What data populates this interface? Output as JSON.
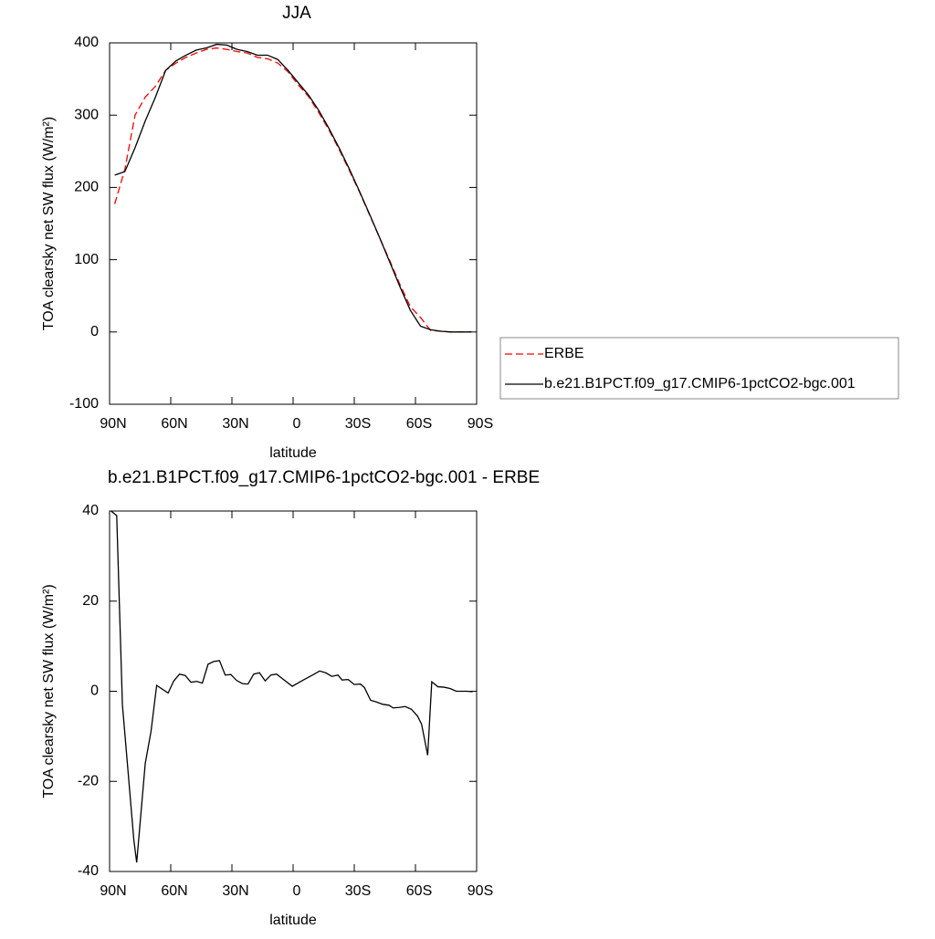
{
  "chart_data": [
    {
      "type": "line",
      "title": "JJA",
      "xlabel": "latitude",
      "ylabel": "TOA clearsky net SW flux (W/m²)",
      "x": [
        87.5,
        82.5,
        77.5,
        72.5,
        67.5,
        62.5,
        57.5,
        52.5,
        47.5,
        42.5,
        37.5,
        32.5,
        27.5,
        22.5,
        17.5,
        12.5,
        7.5,
        2.5,
        -2.5,
        -7.5,
        -12.5,
        -17.5,
        -22.5,
        -27.5,
        -32.5,
        -37.5,
        -42.5,
        -47.5,
        -52.5,
        -57.5,
        -62.5,
        -67.5,
        -72.5,
        -77.5,
        -82.5,
        -87.5
      ],
      "series": [
        {
          "name": "ERBE",
          "color": "#ff0000",
          "dash": "dashed",
          "values": [
            177,
            225,
            300,
            325,
            340,
            362,
            372,
            380,
            386,
            391,
            393,
            391,
            388,
            386,
            380,
            378,
            372,
            360,
            342,
            326,
            304,
            280,
            253,
            224,
            194,
            162,
            130,
            98,
            65,
            35,
            20,
            2,
            1,
            0,
            0,
            0
          ]
        },
        {
          "name": "b.e21.B1PCT.f09_g17.CMIP6-1pctCO2-bgc.001",
          "color": "#000000",
          "dash": "solid",
          "values": [
            217,
            222,
            255,
            292,
            325,
            362,
            375,
            383,
            390,
            393,
            398,
            397,
            391,
            388,
            383,
            383,
            377,
            362,
            345,
            328,
            307,
            282,
            255,
            226,
            195,
            163,
            130,
            96,
            62,
            30,
            8,
            3,
            1,
            0,
            0,
            0
          ]
        }
      ],
      "xlim": [
        90,
        -90
      ],
      "ylim": [
        -100,
        400
      ],
      "xticks": [
        {
          "value": 90,
          "label": "90N"
        },
        {
          "value": 60,
          "label": "60N"
        },
        {
          "value": 30,
          "label": "30N"
        },
        0,
        {
          "value": -30,
          "label": "30S"
        },
        {
          "value": -60,
          "label": "60S"
        },
        {
          "value": -90,
          "label": "90S"
        }
      ],
      "yticks": [
        -100,
        0,
        100,
        200,
        300,
        400
      ]
    },
    {
      "type": "line",
      "title": "b.e21.B1PCT.f09_g17.CMIP6-1pctCO2-bgc.001 - ERBE",
      "xlabel": "latitude",
      "ylabel": "TOA clearsky net SW flux (W/m²)",
      "x": [
        89.3,
        86.5,
        83.7,
        78.1,
        76.7,
        72.5,
        69.7,
        66.9,
        61.3,
        58.5,
        55.7,
        52.9,
        50.1,
        47.3,
        44.5,
        41.7,
        38.9,
        36.1,
        33.3,
        30.5,
        27.7,
        24.9,
        22.1,
        19.3,
        16.5,
        13.7,
        10.9,
        8.1,
        5.3,
        0.4,
        -5,
        -10,
        -13,
        -16,
        -19,
        -22,
        -24,
        -27,
        -30,
        -33,
        -35,
        -38,
        -41,
        -44,
        -47,
        -49,
        -52,
        -55,
        -58,
        -61,
        -63,
        -66,
        -68,
        -71,
        -74,
        -77,
        -80,
        -85,
        -88
      ],
      "series": [
        {
          "color": "#000000",
          "dash": "solid",
          "values": [
            40,
            39,
            -3,
            -33,
            -38,
            -16,
            -9,
            1.3,
            -0.4,
            2.3,
            3.8,
            3.5,
            2,
            2.2,
            1.8,
            6,
            6.6,
            6.8,
            3.6,
            3.7,
            2.4,
            1.7,
            1.6,
            3.8,
            4.1,
            2.3,
            3.6,
            3.8,
            2.8,
            1.1,
            2.5,
            3.7,
            4.5,
            4.1,
            3.3,
            3.6,
            2.5,
            2.6,
            1.5,
            1.6,
            0.8,
            -2,
            -2.4,
            -2.9,
            -3.1,
            -3.7,
            -3.6,
            -3.4,
            -4,
            -5.5,
            -7.3,
            -14.2,
            2.1,
            1,
            0.9,
            0.6,
            0,
            0,
            -0.1
          ]
        }
      ],
      "xlim": [
        90,
        -90
      ],
      "ylim": [
        -40,
        40
      ],
      "xticks": [
        {
          "value": 90,
          "label": "90N"
        },
        {
          "value": 60,
          "label": "60N"
        },
        {
          "value": 30,
          "label": "30N"
        },
        0,
        {
          "value": -30,
          "label": "30S"
        },
        {
          "value": -60,
          "label": "60S"
        },
        {
          "value": -90,
          "label": "90S"
        }
      ],
      "yticks": [
        -40,
        -20,
        0,
        20,
        40
      ]
    }
  ]
}
